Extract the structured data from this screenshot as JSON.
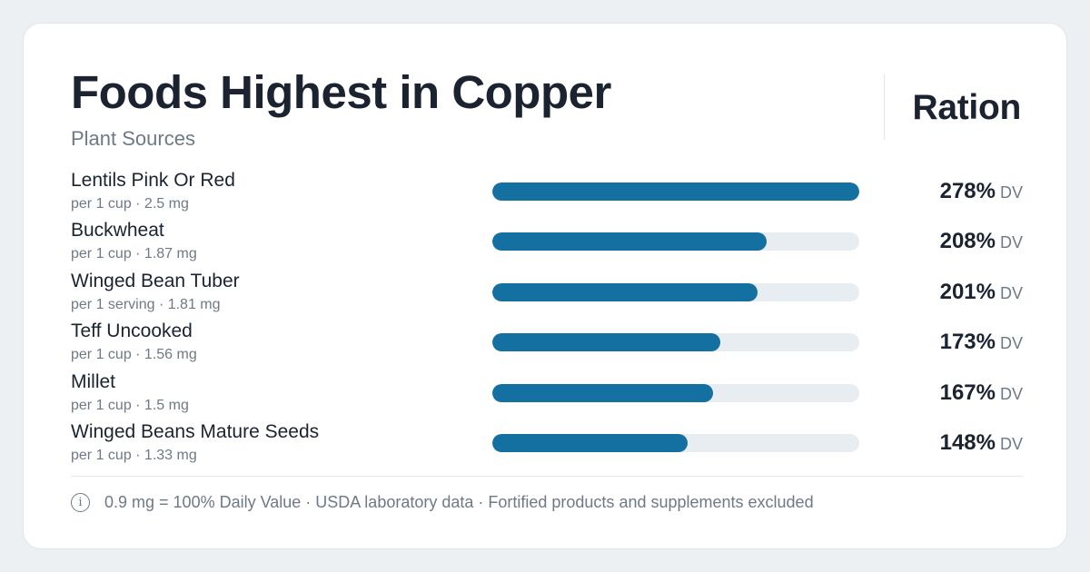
{
  "title": "Foods Highest in Copper",
  "subtitle": "Plant Sources",
  "brand": "Ration",
  "footer": {
    "icon": "info-icon",
    "note": "0.9 mg = 100% Daily Value · USDA laboratory data · Fortified products and supplements excluded"
  },
  "colors": {
    "bar": "#1470a0",
    "track": "#e8edf2",
    "text": "#1b2331",
    "muted": "#6f7986"
  },
  "chart_data": {
    "type": "bar",
    "orientation": "horizontal",
    "unit": "DV",
    "categories": [
      "Lentils Pink Or Red",
      "Buckwheat",
      "Winged Bean Tuber",
      "Teff Uncooked",
      "Millet",
      "Winged Beans Mature Seeds"
    ],
    "servings": [
      "per 1 cup · 2.5 mg",
      "per 1 cup · 1.87 mg",
      "per 1 serving · 1.81 mg",
      "per 1 cup · 1.56 mg",
      "per 1 cup · 1.5 mg",
      "per 1 cup · 1.33 mg"
    ],
    "values": [
      278,
      208,
      201,
      173,
      167,
      148
    ],
    "value_labels": [
      "278%",
      "208%",
      "201%",
      "173%",
      "167%",
      "148%"
    ],
    "xlim": [
      0,
      278
    ]
  }
}
